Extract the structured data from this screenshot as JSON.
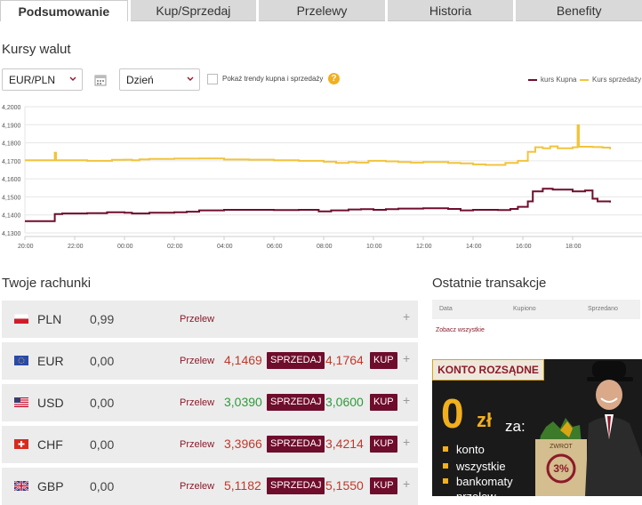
{
  "tabs": [
    "Podsumowanie",
    "Kup/Sprzedaj",
    "Przelewy",
    "Historia",
    "Benefity"
  ],
  "rates_section": {
    "title": "Kursy walut",
    "pair": "EUR/PLN",
    "period": "Dzień",
    "trend_checkbox_label": "Pokaż trendy kupna i sprzedaży",
    "help_icon": "?",
    "legend": [
      {
        "label": "kurs Kupna",
        "color": "#6f0d2c"
      },
      {
        "label": "Kurs sprzedaży",
        "color": "#f2c43c"
      }
    ]
  },
  "chart_data": {
    "type": "line",
    "ylim": [
      4.13,
      4.2
    ],
    "y_ticks": [
      "4,2000",
      "4,1900",
      "4,1800",
      "4,1700",
      "4,1600",
      "4,1500",
      "4,1400",
      "4,1300"
    ],
    "x_ticks": [
      "20:00",
      "22:00",
      "00:00",
      "02:00",
      "04:00",
      "06:00",
      "08:00",
      "10:00",
      "12:00",
      "14:00",
      "16:00",
      "18:00"
    ],
    "xlim_hours": [
      0,
      24
    ],
    "grid": true,
    "series": [
      {
        "name": "Kurs sprzedaży",
        "color": "#f2c43c",
        "points": [
          [
            0,
            4.1703
          ],
          [
            1.1,
            4.1703
          ],
          [
            1.2,
            4.1745
          ],
          [
            1.25,
            4.1703
          ],
          [
            2.5,
            4.17
          ],
          [
            3.5,
            4.1705
          ],
          [
            4.0,
            4.1706
          ],
          [
            4.3,
            4.1703
          ],
          [
            4.6,
            4.1708
          ],
          [
            5.0,
            4.171
          ],
          [
            6.0,
            4.1712
          ],
          [
            7.0,
            4.1713
          ],
          [
            8.0,
            4.1707
          ],
          [
            9.0,
            4.1706
          ],
          [
            10.0,
            4.1703
          ],
          [
            11.0,
            4.17
          ],
          [
            12.0,
            4.1695
          ],
          [
            12.5,
            4.1688
          ],
          [
            13.0,
            4.1693
          ],
          [
            13.3,
            4.169
          ],
          [
            13.8,
            4.17
          ],
          [
            14.5,
            4.1697
          ],
          [
            15.0,
            4.1693
          ],
          [
            15.5,
            4.169
          ],
          [
            16.0,
            4.1693
          ],
          [
            17.0,
            4.1688
          ],
          [
            17.5,
            4.1686
          ],
          [
            18.0,
            4.168
          ],
          [
            18.5,
            4.1677
          ],
          [
            19.0,
            4.1677
          ],
          [
            19.3,
            4.1688
          ],
          [
            19.8,
            4.17
          ],
          [
            20.2,
            4.175
          ],
          [
            20.5,
            4.1775
          ],
          [
            20.8,
            4.177
          ],
          [
            21.1,
            4.178
          ],
          [
            21.4,
            4.177
          ],
          [
            21.7,
            4.177
          ],
          [
            22.0,
            4.1775
          ],
          [
            22.2,
            4.1897
          ],
          [
            22.25,
            4.1778
          ],
          [
            22.8,
            4.1776
          ],
          [
            23.2,
            4.1773
          ],
          [
            23.5,
            4.1764
          ]
        ]
      },
      {
        "name": "kurs Kupna",
        "color": "#6f0d2c",
        "points": [
          [
            0,
            4.1365
          ],
          [
            1.1,
            4.1365
          ],
          [
            1.2,
            4.1405
          ],
          [
            1.5,
            4.1408
          ],
          [
            2.5,
            4.141
          ],
          [
            3.0,
            4.141
          ],
          [
            3.3,
            4.1415
          ],
          [
            4.0,
            4.1412
          ],
          [
            4.3,
            4.1408
          ],
          [
            5.0,
            4.1412
          ],
          [
            6.0,
            4.1415
          ],
          [
            6.5,
            4.1418
          ],
          [
            7.0,
            4.1425
          ],
          [
            8.0,
            4.1428
          ],
          [
            9.0,
            4.1428
          ],
          [
            10.0,
            4.1427
          ],
          [
            11.0,
            4.1428
          ],
          [
            11.8,
            4.142
          ],
          [
            12.3,
            4.1425
          ],
          [
            13.0,
            4.143
          ],
          [
            13.5,
            4.1432
          ],
          [
            14.0,
            4.1428
          ],
          [
            14.5,
            4.1432
          ],
          [
            15.0,
            4.1435
          ],
          [
            16.0,
            4.1437
          ],
          [
            17.0,
            4.1433
          ],
          [
            17.5,
            4.1425
          ],
          [
            18.0,
            4.1428
          ],
          [
            19.0,
            4.1427
          ],
          [
            19.5,
            4.1433
          ],
          [
            19.8,
            4.1445
          ],
          [
            20.2,
            4.1475
          ],
          [
            20.4,
            4.153
          ],
          [
            20.8,
            4.1545
          ],
          [
            21.2,
            4.154
          ],
          [
            21.5,
            4.154
          ],
          [
            22.0,
            4.153
          ],
          [
            22.5,
            4.1535
          ],
          [
            22.8,
            4.149
          ],
          [
            23.0,
            4.1475
          ],
          [
            23.5,
            4.1469
          ]
        ]
      }
    ]
  },
  "accounts": {
    "title": "Twoje rachunki",
    "transfer_label": "Przelew",
    "sell_label": "SPRZEDAJ",
    "buy_label": "KUP",
    "rows": [
      {
        "currency": "PLN",
        "balance": "0,99",
        "buy_rate": "",
        "sell_rate": "",
        "rate_color": "#c0392b"
      },
      {
        "currency": "EUR",
        "balance": "0,00",
        "buy_rate": "4,1469",
        "sell_rate": "4,1764",
        "rate_color": "#c0392b"
      },
      {
        "currency": "USD",
        "balance": "0,00",
        "buy_rate": "3,0390",
        "sell_rate": "3,0600",
        "rate_color": "#2e9b3a"
      },
      {
        "currency": "CHF",
        "balance": "0,00",
        "buy_rate": "3,3966",
        "sell_rate": "3,4214",
        "rate_color": "#c0392b"
      },
      {
        "currency": "GBP",
        "balance": "0,00",
        "buy_rate": "5,1182",
        "sell_rate": "5,1550",
        "rate_color": "#c0392b"
      }
    ]
  },
  "transactions": {
    "title": "Ostatnie transakcje",
    "columns": [
      "Data",
      "Kupiono",
      "Sprzedano"
    ],
    "see_all": "Zobacz wszystkie"
  },
  "ad": {
    "banner": "KONTO ROZSĄDNE",
    "zero": "0",
    "currency": "zł",
    "za": "za:",
    "items": [
      "konto",
      "wszystkie",
      "bankomaty",
      "przelew"
    ],
    "bag_top": "ZWROT",
    "bag_pct": "3%"
  }
}
